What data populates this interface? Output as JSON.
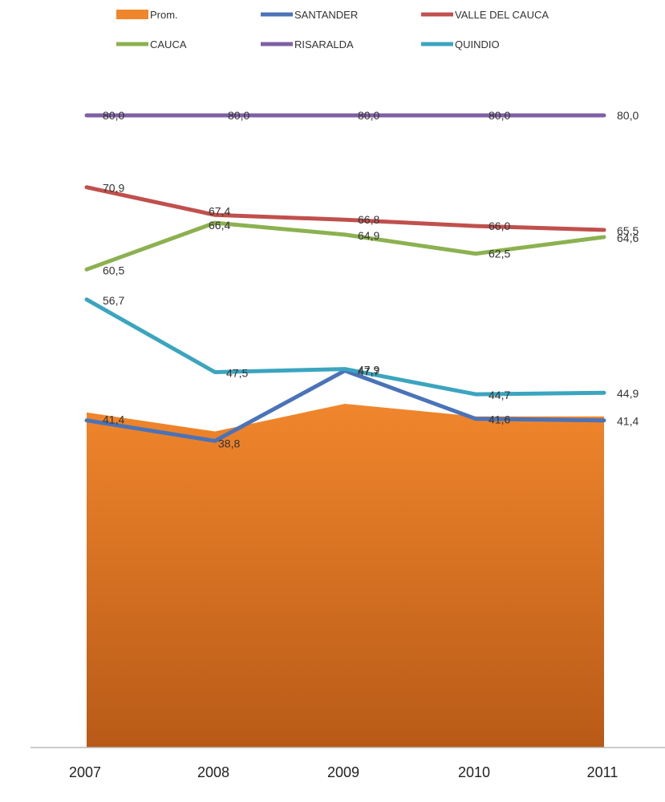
{
  "chart_data": {
    "type": "line",
    "categories": [
      "2007",
      "2008",
      "2009",
      "2010",
      "2011"
    ],
    "ylim": [
      0,
      85
    ],
    "grid": false,
    "legend_position": "top",
    "area": {
      "name": "Prom.",
      "values": [
        42.4,
        40.0,
        43.5,
        41.9,
        41.9
      ],
      "color_top": "#f0862c",
      "color_bottom": "#b85a17"
    },
    "series": [
      {
        "name": "SANTANDER",
        "values": [
          41.4,
          38.8,
          47.7,
          41.6,
          41.4
        ],
        "labels": [
          "41,4",
          "38,8",
          "47,7",
          "41,6",
          "41,4"
        ],
        "color": "#4a73b8"
      },
      {
        "name": "VALLE DEL CAUCA",
        "values": [
          70.9,
          67.4,
          66.8,
          66.0,
          65.5
        ],
        "labels": [
          "70,9",
          "67,4",
          "66,8",
          "66,0",
          "65,5"
        ],
        "color": "#c0504d"
      },
      {
        "name": "CAUCA",
        "values": [
          60.5,
          66.4,
          64.9,
          62.5,
          64.6
        ],
        "labels": [
          "60,5",
          "66,4",
          "64,9",
          "62,5",
          "64,6"
        ],
        "color": "#8cb150"
      },
      {
        "name": "RISARALDA",
        "values": [
          80.0,
          80.0,
          80.0,
          80.0,
          80.0
        ],
        "labels": [
          "80,0",
          "80,0",
          "80,0",
          "80,0",
          "80,0"
        ],
        "color": "#7f5fa5"
      },
      {
        "name": "QUINDIO",
        "values": [
          56.7,
          47.5,
          47.9,
          44.7,
          44.9
        ],
        "labels": [
          "56,7",
          "47,5",
          "47,9",
          "44,7",
          "44,9"
        ],
        "color": "#3ba5bf"
      }
    ]
  }
}
